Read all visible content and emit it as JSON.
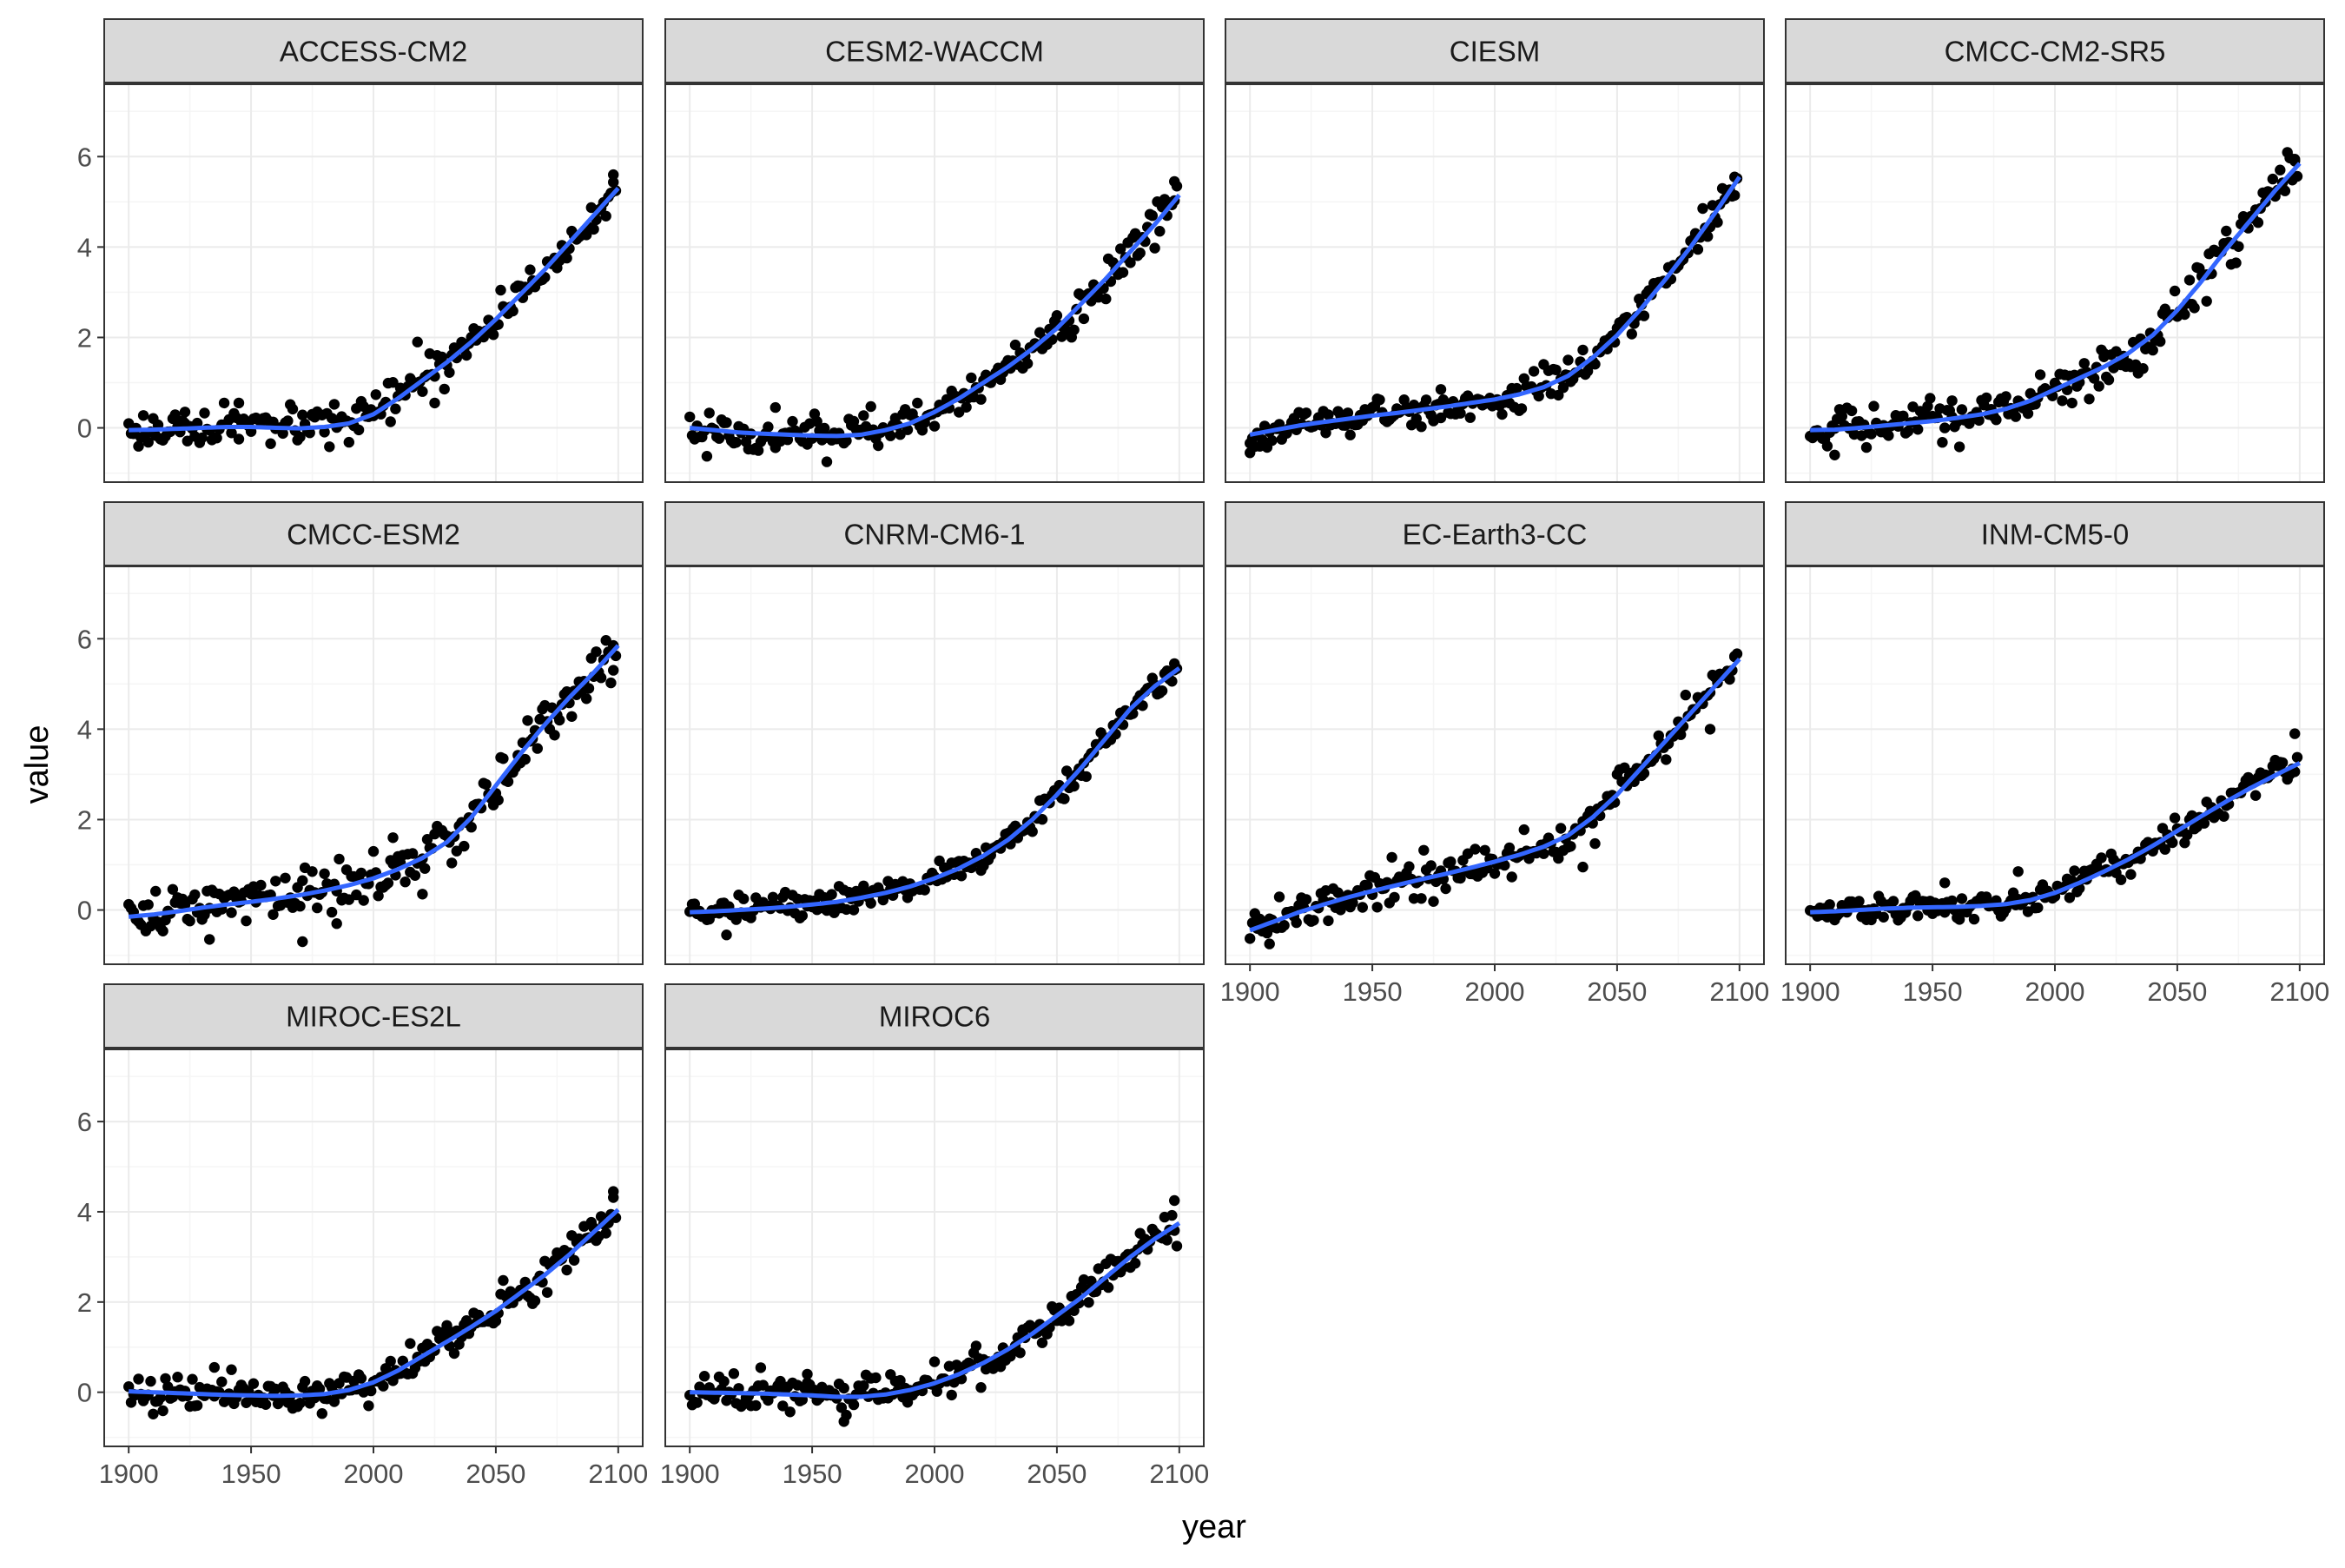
{
  "chart_data": {
    "type": "scatter",
    "xlabel": "year",
    "ylabel": "value",
    "xlim": [
      1890,
      2110
    ],
    "ylim": [
      -1.2,
      7.6
    ],
    "x_ticks": [
      1900,
      1950,
      2000,
      2050,
      2100
    ],
    "y_ticks": [
      0,
      2,
      4,
      6
    ],
    "grid": true,
    "point_color": "#000000",
    "line_color": "#3366ff",
    "strip_fill": "#d9d9d9",
    "panel_border": "#333333",
    "grid_major": "#ebebeb",
    "grid_minor": "#f5f5f5",
    "panels": [
      {
        "name": "ACCESS-CM2",
        "smooth": {
          "x": [
            1900,
            1910,
            1920,
            1930,
            1940,
            1950,
            1960,
            1970,
            1980,
            1990,
            2000,
            2010,
            2020,
            2030,
            2040,
            2050,
            2060,
            2070,
            2080,
            2090,
            2100
          ],
          "y": [
            -0.05,
            -0.04,
            -0.02,
            0.0,
            0.02,
            0.02,
            0.0,
            -0.01,
            0.02,
            0.1,
            0.3,
            0.65,
            1.05,
            1.45,
            1.9,
            2.4,
            2.95,
            3.5,
            4.1,
            4.7,
            5.3
          ]
        },
        "noise": 0.2,
        "outliers": [
          [
            1923,
            0.35
          ],
          [
            1945,
            0.55
          ],
          [
            1975,
            0.3
          ],
          [
            2018,
            1.9
          ],
          [
            2025,
            0.55
          ],
          [
            2098,
            5.6
          ]
        ]
      },
      {
        "name": "CESM2-WACCM",
        "smooth": {
          "x": [
            1900,
            1910,
            1920,
            1930,
            1940,
            1950,
            1960,
            1970,
            1980,
            1990,
            2000,
            2010,
            2020,
            2030,
            2040,
            2050,
            2060,
            2070,
            2080,
            2090,
            2100
          ],
          "y": [
            0.0,
            -0.05,
            -0.1,
            -0.13,
            -0.15,
            -0.17,
            -0.18,
            -0.15,
            -0.05,
            0.1,
            0.35,
            0.65,
            1.0,
            1.35,
            1.75,
            2.2,
            2.75,
            3.3,
            3.9,
            4.5,
            5.15
          ]
        },
        "noise": 0.2,
        "outliers": [
          [
            1956,
            -0.75
          ],
          [
            1935,
            0.45
          ],
          [
            2098,
            5.45
          ]
        ]
      },
      {
        "name": "CIESM",
        "smooth": {
          "x": [
            1900,
            1910,
            1920,
            1930,
            1940,
            1950,
            1960,
            1970,
            1980,
            1990,
            2000,
            2010,
            2020,
            2030,
            2040,
            2050,
            2060,
            2070,
            2080,
            2090,
            2100
          ],
          "y": [
            -0.15,
            -0.05,
            0.05,
            0.13,
            0.2,
            0.27,
            0.33,
            0.4,
            0.47,
            0.55,
            0.63,
            0.74,
            0.9,
            1.15,
            1.55,
            2.05,
            2.65,
            3.3,
            4.0,
            4.75,
            5.55
          ]
        },
        "noise": 0.18,
        "outliers": [
          [
            1900,
            -0.55
          ],
          [
            1978,
            0.85
          ],
          [
            2030,
            1.5
          ],
          [
            2098,
            5.55
          ]
        ]
      },
      {
        "name": "CMCC-CM2-SR5",
        "smooth": {
          "x": [
            1900,
            1910,
            1920,
            1930,
            1940,
            1950,
            1960,
            1970,
            1980,
            1990,
            2000,
            2010,
            2020,
            2030,
            2040,
            2050,
            2060,
            2070,
            2080,
            2090,
            2100
          ],
          "y": [
            -0.05,
            -0.04,
            0.0,
            0.05,
            0.1,
            0.15,
            0.22,
            0.3,
            0.42,
            0.6,
            0.85,
            1.1,
            1.35,
            1.65,
            2.05,
            2.6,
            3.25,
            3.95,
            4.6,
            5.25,
            5.85
          ]
        },
        "noise": 0.22,
        "outliers": [
          [
            1910,
            -0.6
          ],
          [
            1958,
            0.6
          ],
          [
            2020,
            1.65
          ],
          [
            2062,
            2.8
          ],
          [
            2098,
            5.9
          ]
        ]
      },
      {
        "name": "CMCC-ESM2",
        "smooth": {
          "x": [
            1900,
            1910,
            1920,
            1930,
            1940,
            1950,
            1960,
            1970,
            1980,
            1990,
            2000,
            2010,
            2020,
            2030,
            2040,
            2050,
            2060,
            2070,
            2080,
            2090,
            2100
          ],
          "y": [
            -0.15,
            -0.1,
            -0.03,
            0.05,
            0.12,
            0.18,
            0.25,
            0.33,
            0.43,
            0.55,
            0.7,
            0.9,
            1.15,
            1.5,
            2.05,
            2.75,
            3.45,
            4.1,
            4.7,
            5.25,
            5.85
          ]
        },
        "noise": 0.25,
        "outliers": [
          [
            1933,
            -0.65
          ],
          [
            1971,
            -0.7
          ],
          [
            1985,
            -0.3
          ],
          [
            2008,
            1.6
          ],
          [
            2020,
            0.35
          ],
          [
            2098,
            5.85
          ]
        ]
      },
      {
        "name": "CNRM-CM6-1",
        "smooth": {
          "x": [
            1900,
            1910,
            1920,
            1930,
            1940,
            1950,
            1960,
            1970,
            1980,
            1990,
            2000,
            2010,
            2020,
            2030,
            2040,
            2050,
            2060,
            2070,
            2080,
            2090,
            2100
          ],
          "y": [
            -0.05,
            -0.03,
            0.0,
            0.03,
            0.07,
            0.12,
            0.18,
            0.27,
            0.38,
            0.52,
            0.7,
            0.92,
            1.2,
            1.55,
            2.0,
            2.55,
            3.15,
            3.8,
            4.45,
            4.95,
            5.35
          ]
        },
        "noise": 0.15,
        "outliers": [
          [
            1915,
            -0.55
          ],
          [
            2098,
            5.45
          ]
        ]
      },
      {
        "name": "EC-Earth3-CC",
        "smooth": {
          "x": [
            1900,
            1910,
            1920,
            1930,
            1940,
            1950,
            1960,
            1970,
            1980,
            1990,
            2000,
            2010,
            2020,
            2030,
            2040,
            2050,
            2060,
            2070,
            2080,
            2090,
            2100
          ],
          "y": [
            -0.45,
            -0.25,
            -0.05,
            0.12,
            0.28,
            0.42,
            0.55,
            0.68,
            0.8,
            0.93,
            1.07,
            1.22,
            1.4,
            1.65,
            2.05,
            2.55,
            3.15,
            3.75,
            4.35,
            4.95,
            5.55
          ]
        },
        "noise": 0.2,
        "outliers": [
          [
            1908,
            -0.75
          ],
          [
            2036,
            0.95
          ],
          [
            2088,
            4.0
          ],
          [
            2098,
            5.6
          ]
        ]
      },
      {
        "name": "INM-CM5-0",
        "smooth": {
          "x": [
            1900,
            1910,
            1920,
            1930,
            1940,
            1950,
            1960,
            1970,
            1980,
            1990,
            2000,
            2010,
            2020,
            2030,
            2040,
            2050,
            2060,
            2070,
            2080,
            2090,
            2100
          ],
          "y": [
            -0.05,
            -0.03,
            0.0,
            0.03,
            0.05,
            0.06,
            0.07,
            0.09,
            0.13,
            0.22,
            0.38,
            0.6,
            0.85,
            1.12,
            1.42,
            1.75,
            2.08,
            2.4,
            2.7,
            2.98,
            3.25
          ]
        },
        "noise": 0.15,
        "outliers": [
          [
            1955,
            0.6
          ],
          [
            1985,
            0.85
          ],
          [
            2098,
            3.9
          ]
        ]
      },
      {
        "name": "MIROC-ES2L",
        "smooth": {
          "x": [
            1900,
            1910,
            1920,
            1930,
            1940,
            1950,
            1960,
            1970,
            1980,
            1990,
            2000,
            2010,
            2020,
            2030,
            2040,
            2050,
            2060,
            2070,
            2080,
            2090,
            2100
          ],
          "y": [
            0.02,
            0.0,
            -0.02,
            -0.04,
            -0.06,
            -0.07,
            -0.08,
            -0.07,
            -0.04,
            0.05,
            0.22,
            0.48,
            0.8,
            1.12,
            1.45,
            1.8,
            2.2,
            2.6,
            3.05,
            3.55,
            4.05
          ]
        },
        "noise": 0.18,
        "outliers": [
          [
            1935,
            0.55
          ],
          [
            1942,
            0.5
          ],
          [
            1998,
            -0.3
          ],
          [
            2098,
            4.45
          ]
        ]
      },
      {
        "name": "MIROC6",
        "smooth": {
          "x": [
            1900,
            1910,
            1920,
            1930,
            1940,
            1950,
            1960,
            1970,
            1980,
            1990,
            2000,
            2010,
            2020,
            2030,
            2040,
            2050,
            2060,
            2070,
            2080,
            2090,
            2100
          ],
          "y": [
            0.0,
            -0.01,
            -0.02,
            -0.03,
            -0.05,
            -0.07,
            -0.1,
            -0.1,
            -0.05,
            0.05,
            0.2,
            0.4,
            0.65,
            0.95,
            1.3,
            1.7,
            2.1,
            2.55,
            3.0,
            3.4,
            3.75
          ]
        },
        "noise": 0.18,
        "outliers": [
          [
            1963,
            -0.65
          ],
          [
            1948,
            0.4
          ],
          [
            2098,
            4.25
          ]
        ]
      }
    ]
  }
}
